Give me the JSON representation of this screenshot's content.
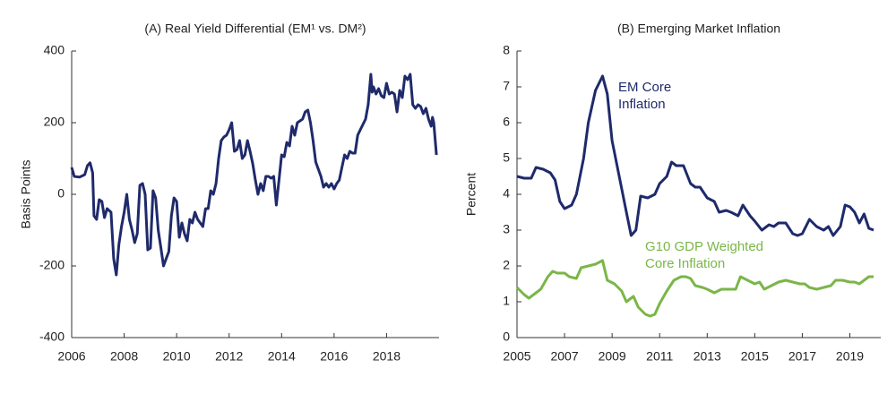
{
  "chart_data": [
    {
      "type": "line",
      "title": "(A) Real Yield Differential (EM¹ vs. DM²)",
      "y_label": "Basis Points",
      "xlim": [
        2006,
        2020
      ],
      "xticks": [
        2006,
        2008,
        2010,
        2012,
        2014,
        2016,
        2018
      ],
      "ylim": [
        -400,
        400
      ],
      "yticks": [
        -400,
        -200,
        0,
        200,
        400
      ],
      "series": [
        {
          "name": null,
          "color": "#1f2a6b",
          "x": [
            2006.0,
            2006.1,
            2006.3,
            2006.5,
            2006.6,
            2006.7,
            2006.8,
            2006.85,
            2006.95,
            2007.05,
            2007.15,
            2007.25,
            2007.35,
            2007.5,
            2007.6,
            2007.7,
            2007.8,
            2007.9,
            2008.0,
            2008.1,
            2008.2,
            2008.3,
            2008.4,
            2008.5,
            2008.6,
            2008.7,
            2008.8,
            2008.9,
            2009.0,
            2009.1,
            2009.2,
            2009.3,
            2009.4,
            2009.5,
            2009.6,
            2009.7,
            2009.8,
            2009.9,
            2010.0,
            2010.1,
            2010.2,
            2010.3,
            2010.4,
            2010.5,
            2010.6,
            2010.7,
            2010.8,
            2011.0,
            2011.1,
            2011.2,
            2011.3,
            2011.4,
            2011.5,
            2011.6,
            2011.7,
            2011.8,
            2011.9,
            2012.0,
            2012.1,
            2012.2,
            2012.3,
            2012.4,
            2012.5,
            2012.6,
            2012.7,
            2012.8,
            2012.9,
            2013.0,
            2013.1,
            2013.2,
            2013.3,
            2013.4,
            2013.5,
            2013.6,
            2013.7,
            2013.8,
            2013.9,
            2014.0,
            2014.1,
            2014.2,
            2014.3,
            2014.4,
            2014.5,
            2014.6,
            2014.8,
            2014.9,
            2015.0,
            2015.1,
            2015.2,
            2015.3,
            2015.4,
            2015.5,
            2015.6,
            2015.7,
            2015.8,
            2015.9,
            2016.0,
            2016.1,
            2016.2,
            2016.3,
            2016.4,
            2016.5,
            2016.6,
            2016.7,
            2016.8,
            2016.9,
            2017.0,
            2017.2,
            2017.3,
            2017.4,
            2017.45,
            2017.5,
            2017.6,
            2017.7,
            2017.8,
            2017.9,
            2018.0,
            2018.1,
            2018.2,
            2018.3,
            2018.4,
            2018.5,
            2018.6,
            2018.7,
            2018.8,
            2018.9,
            2019.0,
            2019.1,
            2019.2,
            2019.3,
            2019.4,
            2019.5,
            2019.6,
            2019.7,
            2019.75,
            2019.8,
            2019.9
          ],
          "values": [
            75,
            50,
            48,
            55,
            80,
            88,
            60,
            -60,
            -70,
            -15,
            -20,
            -65,
            -40,
            -50,
            -180,
            -225,
            -140,
            -90,
            -50,
            0,
            -70,
            -100,
            -135,
            -110,
            25,
            30,
            0,
            -155,
            -150,
            10,
            -10,
            -100,
            -150,
            -200,
            -180,
            -160,
            -60,
            -10,
            -20,
            -120,
            -80,
            -110,
            -130,
            -70,
            -80,
            -50,
            -70,
            -90,
            -40,
            -40,
            10,
            0,
            30,
            100,
            150,
            160,
            165,
            180,
            200,
            120,
            125,
            150,
            100,
            110,
            150,
            120,
            85,
            40,
            0,
            30,
            10,
            50,
            50,
            45,
            50,
            -30,
            40,
            110,
            105,
            145,
            135,
            190,
            165,
            200,
            210,
            230,
            235,
            200,
            150,
            90,
            70,
            50,
            20,
            30,
            20,
            30,
            15,
            30,
            40,
            75,
            110,
            100,
            120,
            115,
            115,
            165,
            180,
            210,
            250,
            335,
            285,
            300,
            280,
            295,
            275,
            270,
            310,
            280,
            285,
            280,
            230,
            290,
            270,
            330,
            320,
            335,
            250,
            240,
            250,
            245,
            225,
            240,
            210,
            190,
            215,
            200,
            110
          ]
        }
      ]
    },
    {
      "type": "line",
      "title": "(B) Emerging Market Inflation",
      "y_label": "Percent",
      "xlim": [
        2005,
        2020.3
      ],
      "xticks": [
        2005,
        2007,
        2009,
        2011,
        2013,
        2015,
        2017,
        2019
      ],
      "ylim": [
        0,
        8
      ],
      "yticks": [
        0,
        1,
        2,
        3,
        4,
        5,
        6,
        7,
        8
      ],
      "series": [
        {
          "name": "EM Core Inflation",
          "color": "#1f2a6b",
          "x": [
            2005.0,
            2005.3,
            2005.6,
            2005.8,
            2006.1,
            2006.4,
            2006.6,
            2006.8,
            2007.0,
            2007.3,
            2007.5,
            2007.8,
            2008.0,
            2008.3,
            2008.6,
            2008.8,
            2009.0,
            2009.3,
            2009.6,
            2009.8,
            2010.0,
            2010.2,
            2010.5,
            2010.8,
            2011.0,
            2011.3,
            2011.5,
            2011.7,
            2012.0,
            2012.3,
            2012.5,
            2012.7,
            2013.0,
            2013.3,
            2013.5,
            2013.8,
            2014.0,
            2014.3,
            2014.5,
            2014.8,
            2015.0,
            2015.3,
            2015.6,
            2015.8,
            2016.0,
            2016.3,
            2016.6,
            2016.8,
            2017.0,
            2017.3,
            2017.6,
            2017.9,
            2018.1,
            2018.3,
            2018.6,
            2018.8,
            2019.0,
            2019.2,
            2019.4,
            2019.6,
            2019.8,
            2020.0
          ],
          "values": [
            4.5,
            4.45,
            4.45,
            4.75,
            4.7,
            4.6,
            4.4,
            3.8,
            3.6,
            3.7,
            4.0,
            5.0,
            6.0,
            6.9,
            7.3,
            6.8,
            5.5,
            4.5,
            3.5,
            2.85,
            3.0,
            3.95,
            3.9,
            4.0,
            4.3,
            4.5,
            4.9,
            4.8,
            4.8,
            4.3,
            4.2,
            4.2,
            3.9,
            3.8,
            3.5,
            3.55,
            3.5,
            3.4,
            3.7,
            3.4,
            3.25,
            3.0,
            3.15,
            3.1,
            3.2,
            3.2,
            2.9,
            2.85,
            2.9,
            3.3,
            3.1,
            3.0,
            3.1,
            2.85,
            3.1,
            3.7,
            3.65,
            3.5,
            3.2,
            3.45,
            3.05,
            3.0
          ]
        },
        {
          "name": "G10 GDP Weighted Core Inflation",
          "color": "#7ab648",
          "x": [
            2005.0,
            2005.3,
            2005.5,
            2005.8,
            2006.0,
            2006.3,
            2006.5,
            2006.7,
            2007.0,
            2007.2,
            2007.5,
            2007.7,
            2008.0,
            2008.3,
            2008.6,
            2008.8,
            2009.1,
            2009.4,
            2009.6,
            2009.9,
            2010.1,
            2010.4,
            2010.6,
            2010.8,
            2011.0,
            2011.3,
            2011.6,
            2011.9,
            2012.1,
            2012.3,
            2012.5,
            2012.8,
            2013.0,
            2013.3,
            2013.6,
            2013.9,
            2014.2,
            2014.4,
            2014.7,
            2015.0,
            2015.2,
            2015.4,
            2015.7,
            2016.0,
            2016.3,
            2016.6,
            2016.9,
            2017.1,
            2017.3,
            2017.6,
            2017.9,
            2018.2,
            2018.4,
            2018.7,
            2019.0,
            2019.2,
            2019.4,
            2019.6,
            2019.8,
            2020.0
          ],
          "values": [
            1.4,
            1.2,
            1.1,
            1.25,
            1.35,
            1.7,
            1.85,
            1.8,
            1.8,
            1.7,
            1.65,
            1.95,
            2.0,
            2.05,
            2.15,
            1.6,
            1.5,
            1.3,
            1.0,
            1.15,
            0.85,
            0.65,
            0.6,
            0.65,
            0.95,
            1.3,
            1.6,
            1.7,
            1.7,
            1.65,
            1.45,
            1.4,
            1.35,
            1.25,
            1.35,
            1.35,
            1.35,
            1.7,
            1.6,
            1.5,
            1.55,
            1.35,
            1.45,
            1.55,
            1.6,
            1.55,
            1.5,
            1.5,
            1.4,
            1.35,
            1.4,
            1.45,
            1.6,
            1.6,
            1.55,
            1.55,
            1.5,
            1.6,
            1.7,
            1.7
          ]
        }
      ]
    }
  ]
}
